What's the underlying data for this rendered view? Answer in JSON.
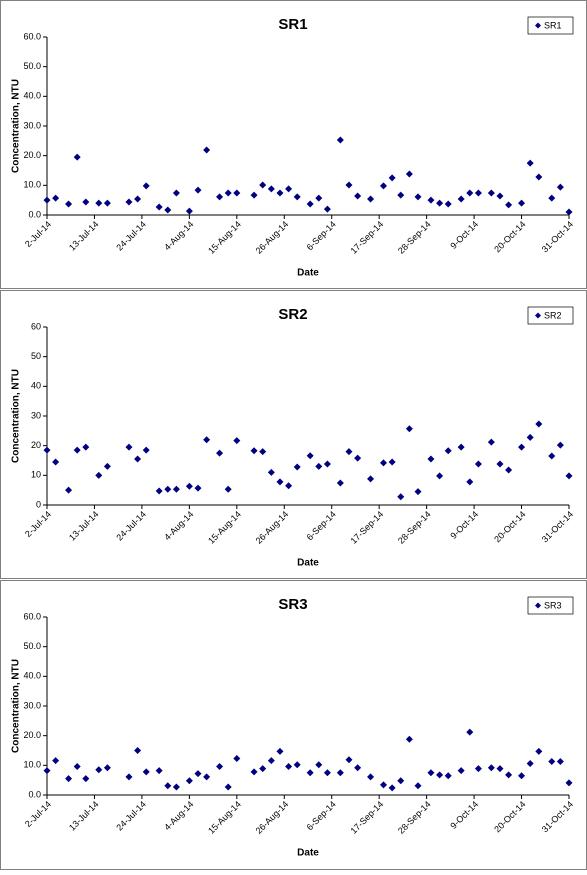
{
  "chart_data": [
    {
      "type": "scatter",
      "title": "SR1",
      "xlabel": "Date",
      "ylabel": "Concentration, NTU",
      "legend": "upper right",
      "grid": false,
      "xlim": [
        "2014-07-02",
        "2014-10-31"
      ],
      "xticks": [
        {
          "value": "2014-07-02",
          "label": "2-Jul-14"
        },
        {
          "value": "2014-07-13",
          "label": "13-Jul-14"
        },
        {
          "value": "2014-07-24",
          "label": "24-Jul-14"
        },
        {
          "value": "2014-08-04",
          "label": "4-Aug-14"
        },
        {
          "value": "2014-08-15",
          "label": "15-Aug-14"
        },
        {
          "value": "2014-08-26",
          "label": "26-Aug-14"
        },
        {
          "value": "2014-09-06",
          "label": "6-Sep-14"
        },
        {
          "value": "2014-09-17",
          "label": "17-Sep-14"
        },
        {
          "value": "2014-09-28",
          "label": "28-Sep-14"
        },
        {
          "value": "2014-10-09",
          "label": "9-Oct-14"
        },
        {
          "value": "2014-10-20",
          "label": "20-Oct-14"
        },
        {
          "value": "2014-10-31",
          "label": "31-Oct-14"
        }
      ],
      "ylim": [
        0,
        60
      ],
      "yticks": [
        {
          "value": 0,
          "label": "0.0"
        },
        {
          "value": 10,
          "label": "10.0"
        },
        {
          "value": 20,
          "label": "20.0"
        },
        {
          "value": 30,
          "label": "30.0"
        },
        {
          "value": 40,
          "label": "40.0"
        },
        {
          "value": 50,
          "label": "50.0"
        },
        {
          "value": 60,
          "label": "60.0"
        }
      ],
      "series": [
        {
          "name": "SR1",
          "color": "#000080",
          "x": [
            "2014-07-02",
            "2014-07-04",
            "2014-07-07",
            "2014-07-09",
            "2014-07-11",
            "2014-07-14",
            "2014-07-16",
            "2014-07-21",
            "2014-07-23",
            "2014-07-25",
            "2014-07-28",
            "2014-07-30",
            "2014-08-01",
            "2014-08-04",
            "2014-08-06",
            "2014-08-08",
            "2014-08-11",
            "2014-08-13",
            "2014-08-15",
            "2014-08-19",
            "2014-08-21",
            "2014-08-23",
            "2014-08-25",
            "2014-08-27",
            "2014-08-29",
            "2014-09-01",
            "2014-09-03",
            "2014-09-05",
            "2014-09-08",
            "2014-09-10",
            "2014-09-12",
            "2014-09-15",
            "2014-09-18",
            "2014-09-20",
            "2014-09-22",
            "2014-09-24",
            "2014-09-26",
            "2014-09-29",
            "2014-10-01",
            "2014-10-03",
            "2014-10-06",
            "2014-10-08",
            "2014-10-10",
            "2014-10-13",
            "2014-10-15",
            "2014-10-17",
            "2014-10-20",
            "2014-10-22",
            "2014-10-24",
            "2014-10-27",
            "2014-10-29",
            "2014-10-31"
          ],
          "values": [
            5.0,
            5.7,
            3.7,
            19.5,
            4.4,
            4.0,
            4.0,
            4.4,
            5.4,
            9.8,
            2.7,
            1.7,
            7.4,
            1.3,
            8.4,
            21.9,
            6.1,
            7.4,
            7.4,
            6.7,
            10.1,
            8.8,
            7.4,
            8.8,
            6.1,
            3.7,
            5.7,
            2.0,
            25.3,
            10.1,
            6.4,
            5.4,
            9.8,
            12.5,
            6.7,
            13.8,
            6.1,
            5.0,
            4.0,
            3.7,
            5.4,
            7.4,
            7.4,
            7.4,
            6.4,
            3.4,
            4.0,
            17.5,
            12.8,
            5.7,
            9.4,
            1.0
          ]
        }
      ]
    },
    {
      "type": "scatter",
      "title": "SR2",
      "xlabel": "Date",
      "ylabel": "Concentration, NTU",
      "legend": "upper right",
      "grid": false,
      "xlim": [
        "2014-07-02",
        "2014-10-31"
      ],
      "xticks": [
        {
          "value": "2014-07-02",
          "label": "2-Jul-14"
        },
        {
          "value": "2014-07-13",
          "label": "13-Jul-14"
        },
        {
          "value": "2014-07-24",
          "label": "24-Jul-14"
        },
        {
          "value": "2014-08-04",
          "label": "4-Aug-14"
        },
        {
          "value": "2014-08-15",
          "label": "15-Aug-14"
        },
        {
          "value": "2014-08-26",
          "label": "26-Aug-14"
        },
        {
          "value": "2014-09-06",
          "label": "6-Sep-14"
        },
        {
          "value": "2014-09-17",
          "label": "17-Sep-14"
        },
        {
          "value": "2014-09-28",
          "label": "28-Sep-14"
        },
        {
          "value": "2014-10-09",
          "label": "9-Oct-14"
        },
        {
          "value": "2014-10-20",
          "label": "20-Oct-14"
        },
        {
          "value": "2014-10-31",
          "label": "31-Oct-14"
        }
      ],
      "ylim": [
        0,
        60
      ],
      "yticks": [
        0,
        10,
        20,
        30,
        40,
        50,
        60
      ],
      "series": [
        {
          "name": "SR2",
          "color": "#000080",
          "x": [
            "2014-07-02",
            "2014-07-04",
            "2014-07-07",
            "2014-07-09",
            "2014-07-11",
            "2014-07-14",
            "2014-07-16",
            "2014-07-21",
            "2014-07-23",
            "2014-07-25",
            "2014-07-28",
            "2014-07-30",
            "2014-08-01",
            "2014-08-04",
            "2014-08-06",
            "2014-08-08",
            "2014-08-11",
            "2014-08-13",
            "2014-08-15",
            "2014-08-19",
            "2014-08-21",
            "2014-08-23",
            "2014-08-25",
            "2014-08-27",
            "2014-08-29",
            "2014-09-01",
            "2014-09-03",
            "2014-09-05",
            "2014-09-08",
            "2014-09-10",
            "2014-09-12",
            "2014-09-15",
            "2014-09-18",
            "2014-09-20",
            "2014-09-22",
            "2014-09-24",
            "2014-09-26",
            "2014-09-29",
            "2014-10-01",
            "2014-10-03",
            "2014-10-06",
            "2014-10-08",
            "2014-10-10",
            "2014-10-13",
            "2014-10-15",
            "2014-10-17",
            "2014-10-20",
            "2014-10-22",
            "2014-10-24",
            "2014-10-27",
            "2014-10-29",
            "2014-10-31"
          ],
          "values": [
            18.5,
            14.5,
            5.0,
            18.5,
            19.5,
            10.0,
            13.0,
            19.5,
            15.5,
            18.5,
            4.7,
            5.3,
            5.3,
            6.3,
            5.7,
            22.0,
            17.5,
            5.3,
            21.7,
            18.3,
            18.0,
            11.0,
            7.8,
            6.5,
            12.8,
            16.6,
            13.0,
            13.8,
            7.4,
            18.0,
            15.8,
            8.8,
            14.2,
            14.5,
            2.8,
            25.7,
            4.5,
            15.5,
            9.8,
            18.3,
            19.5,
            7.8,
            13.8,
            21.2,
            13.8,
            11.8,
            19.5,
            22.8,
            27.3,
            16.5,
            20.2,
            9.8
          ]
        }
      ]
    },
    {
      "type": "scatter",
      "title": "SR3",
      "xlabel": "Date",
      "ylabel": "Concentration, NTU",
      "legend": "upper right",
      "grid": false,
      "xlim": [
        "2014-07-02",
        "2014-10-31"
      ],
      "xticks": [
        {
          "value": "2014-07-02",
          "label": "2-Jul-14"
        },
        {
          "value": "2014-07-13",
          "label": "13-Jul-14"
        },
        {
          "value": "2014-07-24",
          "label": "24-Jul-14"
        },
        {
          "value": "2014-08-04",
          "label": "4-Aug-14"
        },
        {
          "value": "2014-08-15",
          "label": "15-Aug-14"
        },
        {
          "value": "2014-08-26",
          "label": "26-Aug-14"
        },
        {
          "value": "2014-09-06",
          "label": "6-Sep-14"
        },
        {
          "value": "2014-09-17",
          "label": "17-Sep-14"
        },
        {
          "value": "2014-09-28",
          "label": "28-Sep-14"
        },
        {
          "value": "2014-10-09",
          "label": "9-Oct-14"
        },
        {
          "value": "2014-10-20",
          "label": "20-Oct-14"
        },
        {
          "value": "2014-10-31",
          "label": "31-Oct-14"
        }
      ],
      "ylim": [
        0,
        60
      ],
      "yticks": [
        {
          "value": 0,
          "label": "0.0"
        },
        {
          "value": 10,
          "label": "10.0"
        },
        {
          "value": 20,
          "label": "20.0"
        },
        {
          "value": 30,
          "label": "30.0"
        },
        {
          "value": 40,
          "label": "40.0"
        },
        {
          "value": 50,
          "label": "50.0"
        },
        {
          "value": 60,
          "label": "60.0"
        }
      ],
      "series": [
        {
          "name": "SR3",
          "color": "#000080",
          "x": [
            "2014-07-02",
            "2014-07-04",
            "2014-07-07",
            "2014-07-09",
            "2014-07-11",
            "2014-07-14",
            "2014-07-16",
            "2014-07-21",
            "2014-07-23",
            "2014-07-25",
            "2014-07-28",
            "2014-07-30",
            "2014-08-01",
            "2014-08-04",
            "2014-08-06",
            "2014-08-08",
            "2014-08-11",
            "2014-08-13",
            "2014-08-15",
            "2014-08-19",
            "2014-08-21",
            "2014-08-23",
            "2014-08-25",
            "2014-08-27",
            "2014-08-29",
            "2014-09-01",
            "2014-09-03",
            "2014-09-05",
            "2014-09-08",
            "2014-09-10",
            "2014-09-12",
            "2014-09-15",
            "2014-09-18",
            "2014-09-20",
            "2014-09-22",
            "2014-09-24",
            "2014-09-26",
            "2014-09-29",
            "2014-10-01",
            "2014-10-03",
            "2014-10-06",
            "2014-10-08",
            "2014-10-10",
            "2014-10-13",
            "2014-10-15",
            "2014-10-17",
            "2014-10-20",
            "2014-10-22",
            "2014-10-24",
            "2014-10-27",
            "2014-10-29",
            "2014-10-31"
          ],
          "values": [
            8.2,
            11.6,
            5.5,
            9.6,
            5.5,
            8.5,
            9.2,
            6.1,
            15.0,
            7.8,
            8.2,
            3.1,
            2.7,
            4.8,
            7.2,
            6.1,
            9.6,
            2.7,
            12.3,
            7.8,
            8.9,
            11.6,
            14.7,
            9.6,
            10.2,
            7.5,
            10.2,
            7.5,
            7.5,
            11.9,
            9.2,
            6.1,
            3.4,
            2.4,
            4.8,
            18.8,
            3.1,
            7.5,
            6.8,
            6.5,
            8.2,
            21.2,
            8.9,
            9.2,
            8.9,
            6.8,
            6.5,
            10.6,
            14.7,
            11.3,
            11.3,
            4.1
          ]
        }
      ]
    }
  ]
}
